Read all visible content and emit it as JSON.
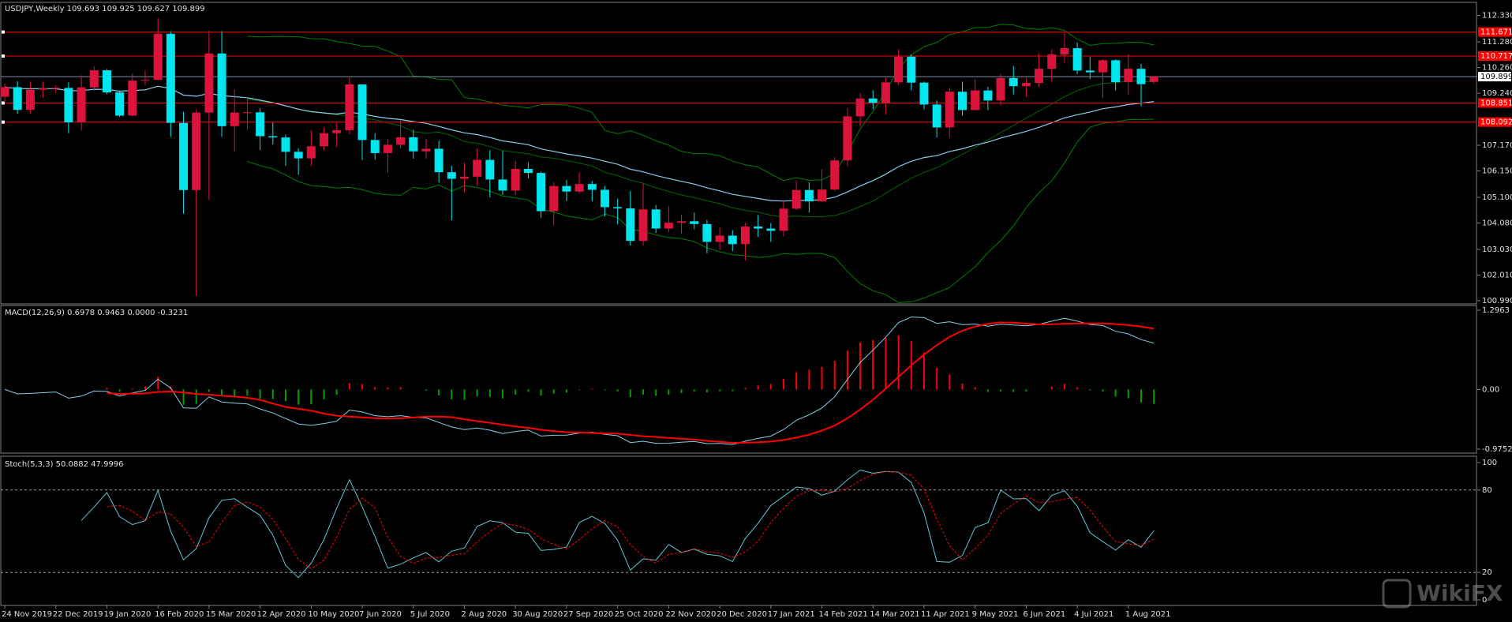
{
  "chart_data": {
    "type": "candlestick",
    "title": "USDJPY,Weekly  109.693 109.925 109.627 109.899",
    "categories": [
      "24 Nov 2019",
      null,
      null,
      null,
      "22 Dec 2019",
      null,
      null,
      null,
      "19 Jan 2020",
      null,
      null,
      null,
      "16 Feb 2020",
      null,
      null,
      null,
      "15 Mar 2020",
      null,
      null,
      null,
      "12 Apr 2020",
      null,
      null,
      null,
      "10 May 2020",
      null,
      null,
      null,
      "7 Jun 2020",
      null,
      null,
      null,
      "5 Jul 2020",
      null,
      null,
      null,
      "2 Aug 2020",
      null,
      null,
      null,
      "30 Aug 2020",
      null,
      null,
      null,
      "27 Sep 2020",
      null,
      null,
      null,
      "25 Oct 2020",
      null,
      null,
      null,
      "22 Nov 2020",
      null,
      null,
      null,
      "20 Dec 2020",
      null,
      null,
      null,
      "17 Jan 2021",
      null,
      null,
      null,
      "14 Feb 2021",
      null,
      null,
      null,
      "14 Mar 2021",
      null,
      null,
      null,
      "11 Apr 2021",
      null,
      null,
      null,
      "9 May 2021",
      null,
      null,
      null,
      "6 Jun 2021",
      null,
      null,
      null,
      "4 Jul 2021",
      null,
      null,
      null,
      "1 Aug 2021",
      null,
      null
    ],
    "open": [
      109.1,
      109.48,
      108.58,
      109.38,
      109.43,
      109.45,
      108.08,
      109.47,
      110.15,
      109.27,
      108.35,
      109.74,
      109.77,
      111.6,
      108.06,
      105.39,
      108.47,
      110.82,
      107.93,
      108.47,
      108.48,
      107.53,
      107.48,
      106.91,
      106.65,
      107.13,
      107.65,
      107.77,
      109.59,
      107.38,
      106.86,
      107.19,
      107.49,
      106.93,
      107.03,
      106.1,
      105.84,
      105.92,
      106.59,
      105.81,
      105.37,
      106.23,
      106.07,
      104.55,
      105.55,
      105.33,
      105.63,
      105.4,
      104.71,
      104.66,
      103.37,
      104.62,
      103.86,
      104.09,
      104.15,
      104.04,
      103.33,
      103.58,
      103.24,
      103.94,
      103.86,
      103.77,
      104.65,
      105.39,
      104.94,
      105.41,
      106.57,
      108.32,
      109.03,
      108.86,
      109.67,
      110.69,
      109.66,
      108.79,
      107.88,
      109.3,
      108.57,
      109.35,
      108.95,
      109.84,
      109.52,
      109.65,
      110.21,
      110.78,
      111.03,
      110.14,
      110.07,
      110.55,
      109.68,
      110.21,
      109.693
    ],
    "high": [
      109.62,
      109.72,
      109.7,
      109.7,
      109.55,
      109.68,
      109.95,
      110.3,
      110.2,
      109.35,
      110.02,
      110.14,
      112.23,
      111.7,
      108.5,
      108.6,
      111.72,
      111.7,
      109.38,
      109.1,
      108.65,
      108.08,
      107.6,
      107.05,
      107.77,
      107.88,
      108.08,
      109.85,
      109.6,
      107.65,
      107.43,
      108.16,
      107.79,
      107.42,
      107.35,
      106.35,
      106.48,
      107.05,
      106.97,
      106.95,
      106.55,
      106.5,
      106.12,
      105.7,
      105.8,
      106.11,
      105.75,
      105.55,
      105.05,
      105.35,
      105.65,
      104.8,
      104.75,
      104.4,
      104.5,
      104.2,
      103.9,
      103.8,
      104.08,
      104.4,
      104.08,
      104.95,
      105.77,
      105.7,
      106.22,
      106.7,
      108.65,
      109.23,
      109.36,
      109.85,
      110.97,
      110.78,
      109.7,
      108.95,
      109.45,
      109.7,
      109.79,
      109.5,
      110.0,
      110.33,
      109.85,
      110.83,
      110.98,
      111.66,
      111.26,
      110.69,
      110.6,
      110.59,
      110.8,
      110.41,
      109.925
    ],
    "low": [
      108.87,
      108.42,
      108.43,
      109.05,
      109.25,
      107.65,
      107.76,
      109.35,
      109.2,
      108.3,
      108.32,
      109.55,
      109.75,
      107.5,
      104.45,
      101.18,
      105.0,
      107.5,
      106.92,
      107.78,
      106.97,
      107.2,
      106.35,
      106.0,
      106.35,
      106.98,
      107.1,
      107.6,
      106.58,
      106.6,
      106.07,
      107.05,
      106.64,
      106.64,
      105.68,
      104.19,
      105.3,
      105.55,
      105.1,
      105.2,
      105.19,
      105.85,
      104.28,
      104.0,
      104.95,
      105.25,
      104.95,
      104.34,
      104.02,
      103.18,
      103.18,
      103.68,
      103.7,
      103.66,
      103.83,
      102.88,
      103.0,
      102.96,
      102.59,
      103.52,
      103.33,
      103.55,
      104.6,
      104.5,
      104.92,
      105.35,
      106.33,
      107.9,
      108.6,
      108.4,
      109.55,
      109.35,
      108.6,
      107.48,
      107.47,
      108.34,
      108.56,
      108.57,
      108.75,
      109.19,
      109.08,
      109.5,
      109.7,
      110.42,
      110.0,
      109.8,
      109.07,
      109.35,
      109.18,
      108.72,
      109.627
    ],
    "close": [
      109.48,
      108.58,
      109.38,
      109.43,
      109.45,
      108.08,
      109.47,
      110.15,
      109.27,
      108.35,
      109.74,
      109.77,
      111.6,
      108.06,
      105.39,
      108.47,
      110.82,
      107.93,
      108.47,
      108.48,
      107.53,
      107.48,
      106.91,
      106.65,
      107.13,
      107.65,
      107.77,
      109.59,
      107.38,
      106.86,
      107.19,
      107.49,
      106.93,
      107.03,
      106.1,
      105.84,
      105.92,
      106.59,
      105.81,
      105.37,
      106.23,
      106.07,
      104.55,
      105.55,
      105.33,
      105.63,
      105.4,
      104.71,
      104.66,
      103.37,
      104.62,
      103.86,
      104.09,
      104.15,
      104.04,
      103.33,
      103.58,
      103.24,
      103.94,
      103.86,
      103.77,
      104.65,
      105.39,
      104.94,
      105.41,
      106.57,
      108.32,
      109.03,
      108.86,
      109.67,
      110.69,
      109.66,
      108.79,
      107.88,
      109.3,
      108.57,
      109.35,
      108.95,
      109.84,
      109.52,
      109.65,
      110.21,
      110.78,
      111.03,
      110.14,
      110.07,
      110.55,
      109.68,
      110.21,
      109.6,
      109.899
    ],
    "up_color": "#dc143c",
    "down_color": "#00e5ee",
    "ylim": [
      100.99,
      112.33
    ],
    "yticks": [
      {
        "value": 112.33,
        "label": "112.330"
      },
      {
        "value": 111.28,
        "label": "111.280"
      },
      {
        "value": 110.26,
        "label": "110.260"
      },
      {
        "value": 109.24,
        "label": "109.240"
      },
      {
        "value": 107.17,
        "label": "107.170"
      },
      {
        "value": 106.15,
        "label": "106.150"
      },
      {
        "value": 105.1,
        "label": "105.100"
      },
      {
        "value": 104.08,
        "label": "104.080"
      },
      {
        "value": 103.03,
        "label": "103.030"
      },
      {
        "value": 102.01,
        "label": "102.010"
      },
      {
        "value": 100.99,
        "label": "100.990"
      }
    ],
    "levels": [
      {
        "value": 111.671,
        "label": "111.671"
      },
      {
        "value": 110.717,
        "label": "110.717"
      },
      {
        "value": 108.851,
        "label": "108.851"
      },
      {
        "value": 108.092,
        "label": "108.092"
      }
    ],
    "level_color": "#ff0000",
    "last_price": {
      "value": 109.899,
      "label": "109.899"
    },
    "macd": {
      "title": "MACD(12,26,9) 0.6978 0.9463 0.0000 -0.3231",
      "ylim": [
        -0.9752,
        1.2963
      ],
      "yticks": [
        {
          "value": 1.2963,
          "label": "1.2963"
        },
        {
          "value": 0,
          "label": "0.00"
        },
        {
          "value": -0.9752,
          "label": "-0.9752"
        }
      ]
    },
    "stoch": {
      "title": "Stoch(5,3,3) 50.0882 47.9996",
      "ylim": [
        0,
        100
      ],
      "yticks": [
        100,
        80,
        20,
        0
      ],
      "grid": true
    },
    "watermark": "WikiFX"
  }
}
